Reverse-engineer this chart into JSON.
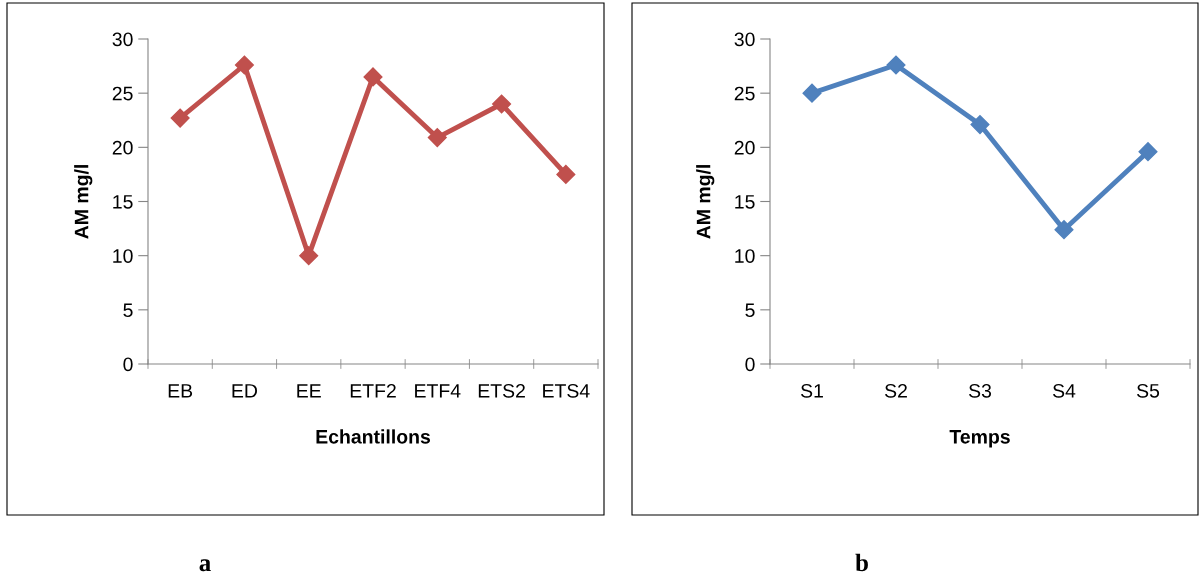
{
  "chart_data": [
    {
      "type": "line",
      "categories": [
        "EB",
        "ED",
        "EE",
        "ETF2",
        "ETF4",
        "ETS2",
        "ETS4"
      ],
      "series": [
        {
          "color": "#c0504d",
          "values": [
            22.7,
            27.6,
            10.0,
            26.5,
            20.9,
            24.0,
            17.5
          ]
        }
      ],
      "xlabel": "Echantillons",
      "ylabel": "AM mg/l",
      "ylim": [
        0,
        30
      ],
      "yticks": [
        0,
        5,
        10,
        15,
        20,
        25,
        30
      ],
      "marker": "diamond",
      "line_style": "solid",
      "grid": false,
      "legend": false,
      "annotations": [
        "a"
      ]
    },
    {
      "type": "line",
      "categories": [
        "S1",
        "S2",
        "S3",
        "S4",
        "S5"
      ],
      "series": [
        {
          "color": "#4f81bd",
          "values": [
            25.0,
            27.6,
            22.1,
            12.4,
            19.6
          ]
        }
      ],
      "xlabel": "Temps",
      "ylabel": "AM mg/l",
      "ylim": [
        0,
        30
      ],
      "yticks": [
        0,
        5,
        10,
        15,
        20,
        25,
        30
      ],
      "marker": "diamond",
      "line_style": "solid",
      "grid": false,
      "legend": false,
      "annotations": [
        "b"
      ]
    }
  ]
}
